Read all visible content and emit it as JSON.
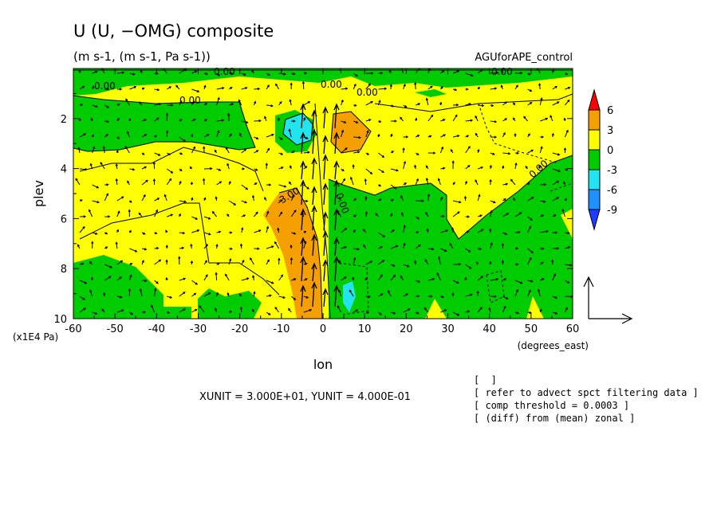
{
  "chart_data": {
    "type": "heatmap",
    "title": "U (U, −OMG) composite",
    "subtitle": "(m s-1, (m s-1, Pa s-1))",
    "dataset_label": "AGUforAPE_control",
    "xlabel": "lon",
    "xunit_label": "(degrees_east)",
    "ylabel": "plev",
    "yunit_label": "(x1E4 Pa)",
    "xlim": [
      -60,
      60
    ],
    "ylim": [
      10,
      0
    ],
    "x_ticks": [
      "-60",
      "-50",
      "-40",
      "-30",
      "-20",
      "-10",
      "0",
      "10",
      "20",
      "30",
      "40",
      "50",
      "60"
    ],
    "y_ticks": [
      "2",
      "4",
      "6",
      "8",
      "10"
    ],
    "colorbar": {
      "levels": [
        "6",
        "3",
        "0",
        "-3",
        "-6",
        "-9"
      ],
      "colors": [
        "#ff0000",
        "#f5a000",
        "#ffff00",
        "#00cc00",
        "#22e4ee",
        "#1e90ff",
        "#1e3cff"
      ]
    },
    "contour_labels": [
      "0.00",
      "0.00",
      "0.00",
      "0.00",
      "0.00",
      "0.00",
      "-3.00",
      "0.00",
      "0.00"
    ],
    "vector_units": "XUNIT = 3.000E+01, YUNIT = 4.000E-01"
  },
  "notes": [
    "[  ]",
    "[ refer to advect spct filtering data ]",
    "[ comp threshold = 0.0003 ]",
    "[ (diff) from (mean) zonal ]"
  ]
}
